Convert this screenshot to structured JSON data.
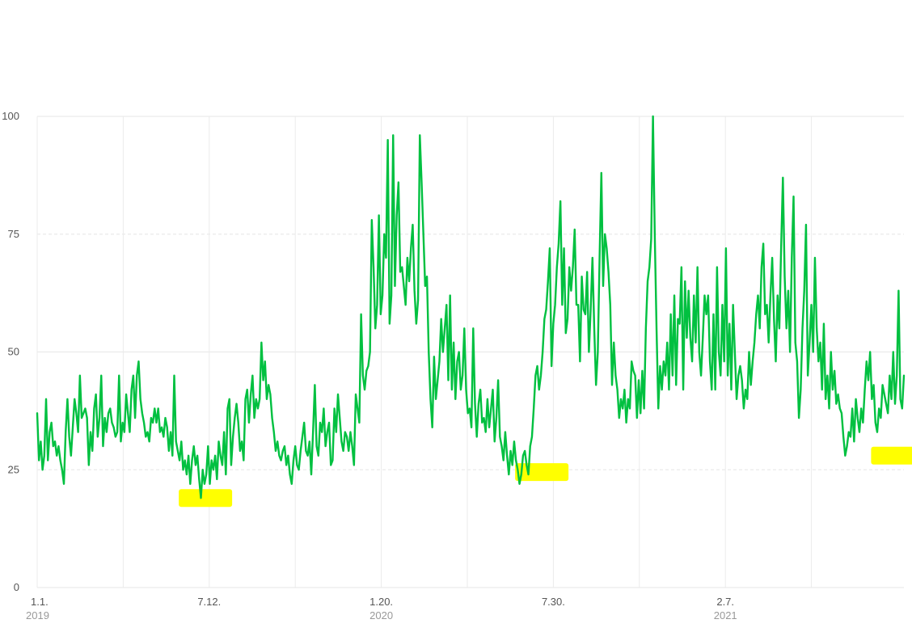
{
  "chart_data": {
    "type": "line",
    "title": "",
    "xlabel": "",
    "ylabel": "",
    "ylim": [
      0,
      100
    ],
    "yticks": [
      "0",
      "25",
      "50",
      "75",
      "100"
    ],
    "xticks": [
      {
        "label": "1.1.",
        "year": "2019"
      },
      {
        "label": "7.12.",
        "year": ""
      },
      {
        "label": "1.20.",
        "year": "2020"
      },
      {
        "label": "7.30.",
        "year": ""
      },
      {
        "label": "2.7.",
        "year": "2021"
      }
    ],
    "grid": true,
    "line_color": "#00c040",
    "highlight_color": "#ffff00",
    "series": [
      {
        "x_start": "2019-01-01",
        "x_step": "1 week",
        "values": [
          37,
          27,
          31,
          25,
          28,
          40,
          27,
          33,
          35,
          30,
          31,
          28,
          30,
          27,
          25,
          22,
          33,
          40,
          32,
          28,
          34,
          40,
          37,
          33,
          45,
          36,
          37,
          38,
          36,
          26,
          33,
          29,
          38,
          41,
          32,
          36,
          45,
          30,
          36,
          33,
          37,
          38,
          35,
          34,
          32,
          33,
          45,
          31,
          35,
          33,
          41,
          37,
          33,
          42,
          45,
          36,
          45,
          48,
          40,
          37,
          35,
          32,
          33,
          31,
          36,
          35,
          38,
          35,
          38,
          33,
          34,
          32,
          36,
          34,
          29,
          33,
          28,
          45,
          31,
          29,
          27,
          31,
          25,
          27,
          24,
          28,
          22,
          27,
          30,
          26,
          28,
          23,
          19,
          25,
          22,
          24,
          30,
          22,
          27,
          25,
          28,
          23,
          31,
          28,
          26,
          33,
          24,
          38,
          40,
          26,
          32,
          36,
          39,
          35,
          29,
          31,
          27,
          40,
          42,
          35,
          41,
          45,
          36,
          40,
          38,
          40,
          52,
          44,
          48,
          40,
          43,
          41,
          36,
          33,
          29,
          31,
          28,
          27,
          29,
          30,
          26,
          28,
          24,
          22,
          27,
          30,
          26,
          25,
          29,
          32,
          35,
          29,
          28,
          31,
          24,
          33,
          43,
          30,
          28,
          35,
          33,
          38,
          30,
          33,
          35,
          26,
          27,
          38,
          33,
          41,
          36,
          31,
          29,
          33,
          32,
          29,
          33,
          30,
          26,
          41,
          38,
          35,
          58,
          45,
          42,
          46,
          47,
          50,
          78,
          68,
          55,
          60,
          79,
          58,
          62,
          75,
          70,
          95,
          56,
          62,
          96,
          64,
          79,
          86,
          67,
          68,
          64,
          60,
          70,
          65,
          72,
          77,
          63,
          56,
          61,
          96,
          86,
          75,
          64,
          66,
          50,
          40,
          34,
          49,
          40,
          44,
          48,
          57,
          50,
          55,
          60,
          44,
          62,
          42,
          52,
          40,
          48,
          50,
          42,
          45,
          55,
          42,
          37,
          38,
          34,
          55,
          39,
          32,
          39,
          42,
          35,
          36,
          33,
          40,
          34,
          38,
          42,
          31,
          36,
          44,
          32,
          30,
          27,
          33,
          28,
          24,
          29,
          26,
          31,
          27,
          25,
          22,
          24,
          28,
          29,
          26,
          24,
          30,
          32,
          38,
          45,
          47,
          42,
          45,
          50,
          57,
          59,
          65,
          72,
          47,
          56,
          60,
          68,
          73,
          82,
          60,
          72,
          54,
          57,
          68,
          63,
          68,
          76,
          60,
          60,
          48,
          66,
          59,
          58,
          67,
          50,
          59,
          70,
          55,
          43,
          50,
          70,
          88,
          64,
          75,
          72,
          67,
          60,
          43,
          52,
          45,
          42,
          36,
          40,
          38,
          42,
          35,
          40,
          38,
          48,
          46,
          45,
          36,
          44,
          37,
          46,
          38,
          55,
          65,
          68,
          74,
          100,
          75,
          55,
          38,
          47,
          42,
          48,
          45,
          52,
          42,
          58,
          45,
          62,
          43,
          57,
          56,
          68,
          42,
          65,
          53,
          63,
          53,
          48,
          62,
          52,
          68,
          50,
          45,
          53,
          62,
          58,
          62,
          48,
          42,
          58,
          42,
          68,
          50,
          45,
          60,
          48,
          72,
          45,
          56,
          42,
          60,
          50,
          40,
          45,
          47,
          44,
          38,
          42,
          40,
          50,
          43,
          48,
          52,
          58,
          62,
          55,
          68,
          73,
          58,
          60,
          52,
          62,
          70,
          57,
          48,
          62,
          55,
          72,
          87,
          66,
          55,
          63,
          50,
          70,
          83,
          52,
          48,
          36,
          42,
          55,
          63,
          77,
          45,
          52,
          60,
          50,
          70,
          55,
          48,
          52,
          42,
          56,
          40,
          45,
          38,
          50,
          42,
          46,
          39,
          41,
          38,
          37,
          32,
          28,
          30,
          33,
          32,
          38,
          31,
          40,
          36,
          33,
          38,
          35,
          42,
          48,
          44,
          50,
          40,
          43,
          35,
          33,
          38,
          36,
          43,
          41,
          39,
          37,
          45,
          40,
          50,
          39,
          45,
          63,
          40,
          38,
          45
        ]
      }
    ],
    "highlights": [
      {
        "label": "",
        "x_index": 95,
        "y_value": 19
      },
      {
        "label": "",
        "x_index": 284,
        "y_value": 24.5
      },
      {
        "label": "",
        "x_index": 484,
        "y_value": 28
      }
    ]
  }
}
